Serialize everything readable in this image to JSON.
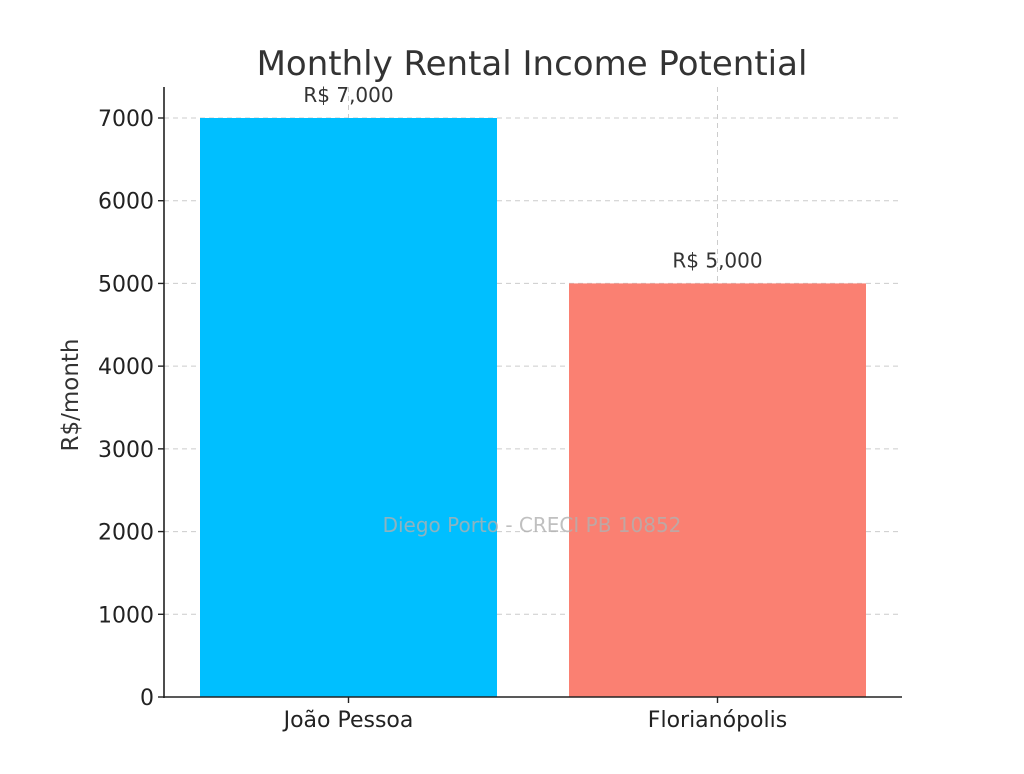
{
  "chart_data": {
    "type": "bar",
    "title": "Monthly Rental Income Potential",
    "xlabel": "",
    "ylabel": "R$/month",
    "categories": [
      "João Pessoa",
      "Florianópolis"
    ],
    "values": [
      7000,
      5000
    ],
    "value_labels": [
      "R$ 7,000",
      "R$ 5,000"
    ],
    "bar_colors": [
      "#00bfff",
      "#fa8072"
    ],
    "ylim": [
      0,
      7000
    ],
    "yticks": [
      0,
      1000,
      2000,
      3000,
      4000,
      5000,
      6000,
      7000
    ],
    "grid": true,
    "legend": "none"
  },
  "watermark": "Diego Porto - CRECI PB 10852"
}
